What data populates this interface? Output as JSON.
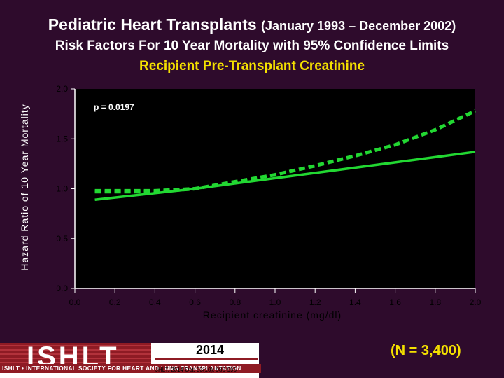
{
  "header": {
    "title_main": "Pediatric Heart Transplants",
    "title_dates": "(January 1993 – December 2002)",
    "title_line2": "Risk Factors For 10 Year Mortality with 95% Confidence Limits",
    "title_line3": "Recipient Pre-Transplant Creatinine"
  },
  "chart_data": {
    "type": "line",
    "xlabel": "Recipient creatinine (mg/dl)",
    "ylabel": "Hazard Ratio of 10 Year Mortality",
    "annotation": "p = 0.0197",
    "xlim": [
      0.0,
      2.0
    ],
    "ylim": [
      0.0,
      2.0
    ],
    "x_ticks": [
      "0.0",
      "0.2",
      "0.4",
      "0.6",
      "0.8",
      "1.0",
      "1.2",
      "1.4",
      "1.6",
      "1.8",
      "2.0"
    ],
    "y_ticks": [
      "0.0",
      "0.5",
      "1.0",
      "1.5",
      "2.0"
    ],
    "grid": false,
    "series": [
      {
        "style": "solid",
        "x": [
          0.1,
          0.6,
          2.0
        ],
        "y": [
          0.89,
          1.0,
          1.37
        ]
      },
      {
        "style": "dashed",
        "x": [
          0.1,
          0.4,
          0.6,
          0.8,
          1.0,
          1.2,
          1.4,
          1.6,
          1.8,
          2.0
        ],
        "y": [
          0.98,
          0.98,
          1.0,
          1.07,
          1.14,
          1.23,
          1.33,
          1.44,
          1.59,
          1.78
        ]
      },
      {
        "style": "dashed",
        "x": [
          0.1,
          0.4,
          0.6
        ],
        "y": [
          0.97,
          0.97,
          1.0
        ]
      }
    ],
    "colors": {
      "line": "#22d832",
      "plot_bg": "#000000",
      "axis": "#ffffff",
      "tick_text": "#000000"
    }
  },
  "footer": {
    "logo_text": "ISHLT",
    "logo_strip": "ISHLT • INTERNATIONAL SOCIETY FOR HEART AND LUNG TRANSPLANTATION",
    "year": "2014",
    "citation": "JHLT. 2014 Oct; 33(10): 985-995",
    "n_label": "(N = 3,400)"
  }
}
